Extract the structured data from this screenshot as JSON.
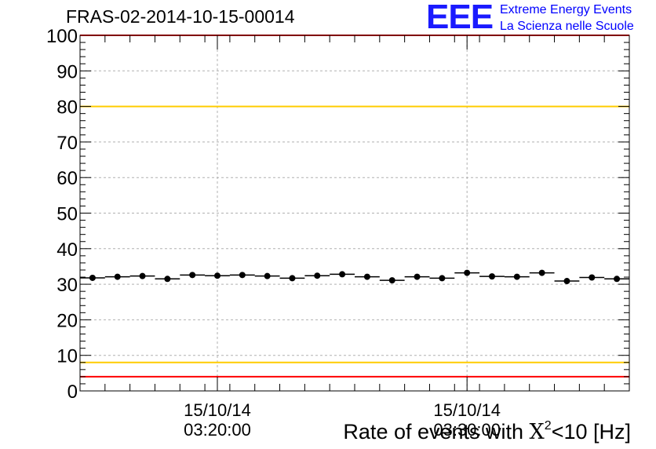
{
  "chart_data": {
    "type": "scatter",
    "title": "FRAS-02-2014-10-15-00014",
    "xlabel": {
      "prefix": "Rate of events with ",
      "symbol": "X",
      "exponent": "2",
      "suffix": "<10 [Hz]"
    },
    "ylabel": "",
    "ylim": [
      0,
      100
    ],
    "y_ticks": [
      "0",
      "10",
      "20",
      "30",
      "40",
      "50",
      "60",
      "70",
      "80",
      "90",
      "100"
    ],
    "x_tick_labels": [
      {
        "date": "15/10/14",
        "time": "03:20:00",
        "bin_pos": 5.5
      },
      {
        "date": "15/10/14",
        "time": "03:30:00",
        "bin_pos": 15.5
      }
    ],
    "bins": 22,
    "values": [
      31.8,
      32.1,
      32.3,
      31.5,
      32.6,
      32.4,
      32.6,
      32.3,
      31.7,
      32.4,
      32.8,
      32.1,
      31.1,
      32.1,
      31.7,
      33.2,
      32.2,
      32.1,
      33.2,
      30.9,
      31.9,
      31.5
    ],
    "reference_lines": [
      {
        "y": 100,
        "color": "#ff0000"
      },
      {
        "y": 80,
        "color": "#ffcc00"
      },
      {
        "y": 8,
        "color": "#ffcc00"
      },
      {
        "y": 4,
        "color": "#ff0000"
      }
    ],
    "grid": true
  },
  "logo": {
    "mark": "EEE",
    "line1": "Extreme Energy Events",
    "line2": "La Scienza nelle Scuole"
  },
  "colors": {
    "marker": "#000000",
    "grid": "#b0b0b0",
    "logo": "#0000ff"
  }
}
